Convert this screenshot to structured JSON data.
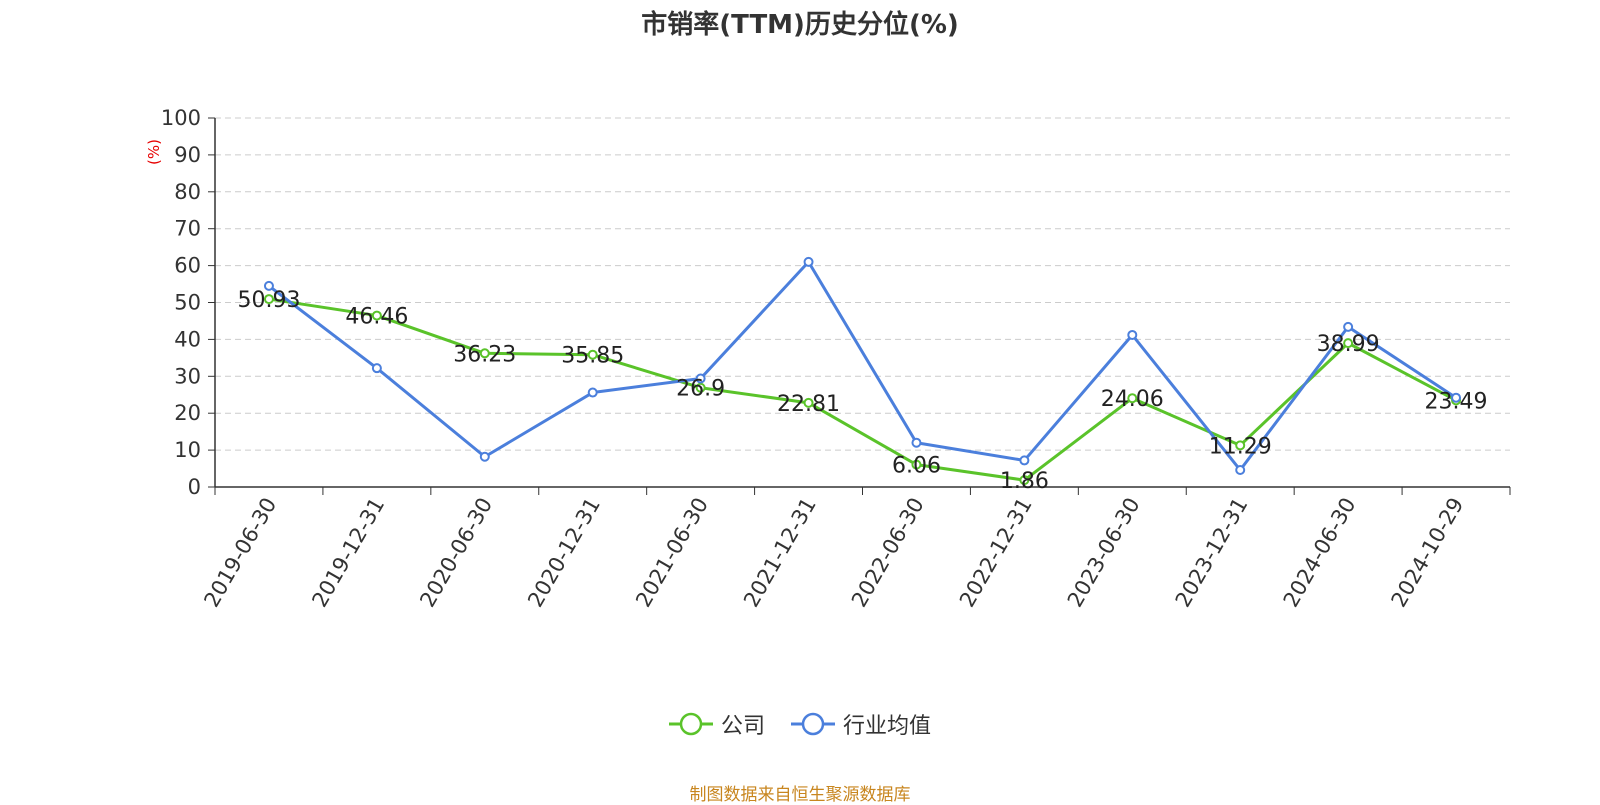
{
  "chart_data": {
    "type": "line",
    "title": "市销率(TTM)历史分位(%)",
    "ylabel": "(%)",
    "ylim": [
      0,
      100
    ],
    "yticks": [
      0,
      10,
      20,
      30,
      40,
      50,
      60,
      70,
      80,
      90,
      100
    ],
    "grid": true,
    "legend_position": "bottom",
    "categories": [
      "2019-06-30",
      "2019-12-31",
      "2020-06-30",
      "2020-12-31",
      "2021-06-30",
      "2021-12-31",
      "2022-06-30",
      "2022-12-31",
      "2023-06-30",
      "2023-12-31",
      "2024-06-30",
      "2024-10-29"
    ],
    "series": [
      {
        "name": "公司",
        "color": "#5ac32a",
        "values": [
          50.93,
          46.46,
          36.23,
          35.85,
          26.9,
          22.81,
          6.06,
          1.86,
          24.06,
          11.29,
          38.99,
          23.49
        ],
        "labels": [
          "50.93",
          "46.46",
          "36.23",
          "35.85",
          "26.9",
          "22.81",
          "6.06",
          "1.86",
          "24.06",
          "11.29",
          "38.99",
          "23.49"
        ]
      },
      {
        "name": "行业均值",
        "color": "#4b7fdc",
        "values": [
          54.5,
          32.2,
          8.2,
          25.6,
          29.4,
          61.0,
          12.0,
          7.2,
          41.2,
          4.6,
          43.4,
          24.2
        ]
      }
    ]
  },
  "source": "制图数据来自恒生聚源数据库"
}
